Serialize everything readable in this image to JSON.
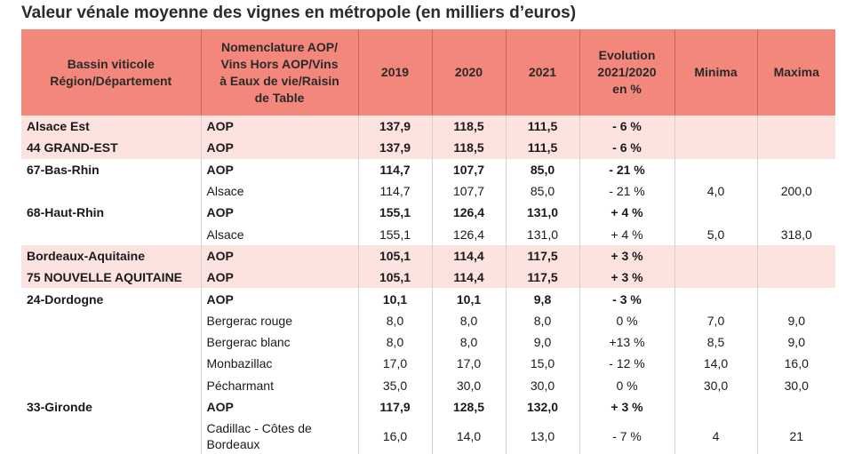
{
  "title": "Valeur vénale moyenne des vignes en métropole (en milliers d’euros)",
  "headers": [
    "Bassin viticole\nRégion/Département",
    "Nomenclature AOP/\nVins Hors AOP/Vins\nà Eaux de vie/Raisin\nde Table",
    "2019",
    "2020",
    "2021",
    "Evolution\n2021/2020\nen %",
    "Minima",
    "Maxima"
  ],
  "rows": [
    {
      "region": "Alsace Est",
      "nomenclature": "AOP",
      "y2019": "137,9",
      "y2020": "118,5",
      "y2021": "111,5",
      "evolution": "- 6 %",
      "minima": "",
      "maxima": ""
    },
    {
      "region": "44 GRAND-EST",
      "nomenclature": "AOP",
      "y2019": "137,9",
      "y2020": "118,5",
      "y2021": "111,5",
      "evolution": "- 6 %",
      "minima": "",
      "maxima": ""
    },
    {
      "region": "67-Bas-Rhin",
      "nomenclature": "AOP",
      "y2019": "114,7",
      "y2020": "107,7",
      "y2021": "85,0",
      "evolution": "- 21 %",
      "minima": "",
      "maxima": ""
    },
    {
      "region": "",
      "nomenclature": "Alsace",
      "y2019": "114,7",
      "y2020": "107,7",
      "y2021": "85,0",
      "evolution": "- 21 %",
      "minima": "4,0",
      "maxima": "200,0"
    },
    {
      "region": "68-Haut-Rhin",
      "nomenclature": "AOP",
      "y2019": "155,1",
      "y2020": "126,4",
      "y2021": "131,0",
      "evolution": "+ 4 %",
      "minima": "",
      "maxima": ""
    },
    {
      "region": "",
      "nomenclature": "Alsace",
      "y2019": "155,1",
      "y2020": "126,4",
      "y2021": "131,0",
      "evolution": "+ 4 %",
      "minima": "5,0",
      "maxima": "318,0"
    },
    {
      "region": "Bordeaux-Aquitaine",
      "nomenclature": "AOP",
      "y2019": "105,1",
      "y2020": "114,4",
      "y2021": "117,5",
      "evolution": "+ 3 %",
      "minima": "",
      "maxima": ""
    },
    {
      "region": "75 NOUVELLE AQUITAINE",
      "nomenclature": "AOP",
      "y2019": "105,1",
      "y2020": "114,4",
      "y2021": "117,5",
      "evolution": "+ 3 %",
      "minima": "",
      "maxima": ""
    },
    {
      "region": "24-Dordogne",
      "nomenclature": "AOP",
      "y2019": "10,1",
      "y2020": "10,1",
      "y2021": "9,8",
      "evolution": "- 3 %",
      "minima": "",
      "maxima": ""
    },
    {
      "region": "",
      "nomenclature": "Bergerac rouge",
      "y2019": "8,0",
      "y2020": "8,0",
      "y2021": "8,0",
      "evolution": "0 %",
      "minima": "7,0",
      "maxima": "9,0"
    },
    {
      "region": "",
      "nomenclature": "Bergerac blanc",
      "y2019": "8,0",
      "y2020": "8,0",
      "y2021": "9,0",
      "evolution": "+13 %",
      "minima": "8,5",
      "maxima": "9,0"
    },
    {
      "region": "",
      "nomenclature": "Monbazillac",
      "y2019": "17,0",
      "y2020": "17,0",
      "y2021": "15,0",
      "evolution": "- 12 %",
      "minima": "14,0",
      "maxima": "16,0"
    },
    {
      "region": "",
      "nomenclature": "Pécharmant",
      "y2019": "35,0",
      "y2020": "30,0",
      "y2021": "30,0",
      "evolution": "0 %",
      "minima": "30,0",
      "maxima": "30,0"
    },
    {
      "region": "33-Gironde",
      "nomenclature": "AOP",
      "y2019": "117,9",
      "y2020": "128,5",
      "y2021": "132,0",
      "evolution": "+ 3 %",
      "minima": "",
      "maxima": ""
    },
    {
      "region": "",
      "nomenclature": "Cadillac - Côtes de Bordeaux",
      "y2019": "16,0",
      "y2020": "14,0",
      "y2021": "13,0",
      "evolution": "- 7 %",
      "minima": "4",
      "maxima": "21"
    }
  ],
  "row_styles": [
    "bold shade",
    "bold shade",
    "bold",
    "",
    "bold",
    "",
    "bold shade",
    "bold shade",
    "bold",
    "",
    "",
    "",
    "",
    "bold",
    "tall"
  ],
  "colors": {
    "header_bg": "#f4877b",
    "highlight_row": "#fde3e0"
  }
}
